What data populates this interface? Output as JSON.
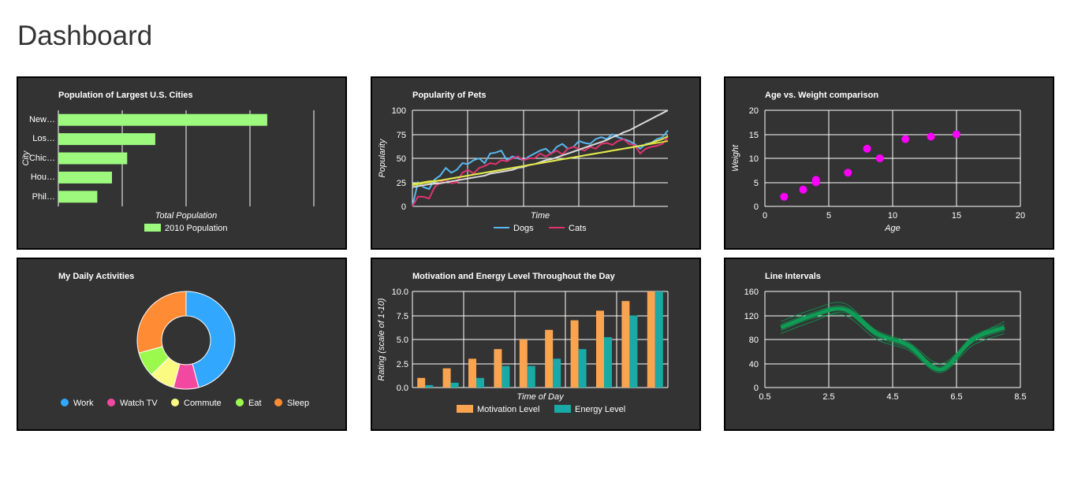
{
  "page": {
    "title": "Dashboard"
  },
  "charts": [
    {
      "type": "bar",
      "title": "Population of Largest U.S. Cities",
      "categories": [
        "New…",
        "Los…",
        "Chic…",
        "Hou…",
        "Phil…"
      ],
      "series": [
        {
          "name": "2010 Population",
          "values": [
            8175000,
            3792000,
            2695000,
            2099000,
            1526000
          ],
          "color": "#9cf97e"
        }
      ],
      "xlabel": "Total Population",
      "ylabel": "City",
      "xlim": [
        0,
        10000000
      ],
      "grid": true,
      "legend": "bottom"
    },
    {
      "type": "line",
      "title": "Popularity of Pets",
      "xlabel": "Time",
      "ylabel": "Popularity",
      "ylim": [
        0,
        100
      ],
      "yticks": [
        "0",
        "25",
        "50",
        "75",
        "100"
      ],
      "x": [
        0,
        1,
        2,
        3,
        4,
        5,
        6,
        7,
        8,
        9,
        10,
        11,
        12,
        13,
        14,
        15,
        16,
        17,
        18,
        19,
        20,
        21,
        22,
        23,
        24,
        25,
        26,
        27,
        28,
        29,
        30,
        31,
        32,
        33,
        34,
        35,
        36,
        37,
        38,
        39,
        40,
        41,
        42,
        43,
        44,
        45,
        46
      ],
      "series": [
        {
          "name": "Dogs",
          "color": "#57b8f0",
          "values": [
            0,
            25,
            20,
            18,
            28,
            32,
            40,
            35,
            38,
            45,
            44,
            48,
            50,
            45,
            55,
            56,
            58,
            48,
            52,
            50,
            48,
            52,
            55,
            58,
            60,
            55,
            62,
            65,
            60,
            62,
            68,
            66,
            65,
            70,
            72,
            70,
            75,
            72,
            70,
            68,
            65,
            60,
            65,
            66,
            70,
            72,
            79
          ]
        },
        {
          "name": "Cats",
          "color": "#e2336f",
          "values": [
            0,
            10,
            10,
            8,
            20,
            25,
            28,
            24,
            25,
            35,
            38,
            34,
            40,
            42,
            45,
            44,
            48,
            47,
            50,
            52,
            48,
            50,
            50,
            55,
            52,
            55,
            58,
            54,
            60,
            62,
            60,
            58,
            62,
            60,
            65,
            66,
            64,
            68,
            70,
            65,
            64,
            55,
            60,
            62,
            63,
            65,
            72
          ]
        }
      ],
      "trend_lines": [
        {
          "color": "#d9d9d9",
          "values": [
            20,
            21,
            22,
            23,
            23.5,
            24,
            25,
            26,
            27,
            28,
            29,
            30,
            31,
            32,
            34,
            35,
            36,
            37,
            38,
            40,
            41,
            43,
            44,
            46,
            48,
            49,
            51,
            53,
            55,
            57,
            59,
            61,
            63,
            65,
            67,
            69,
            72,
            74,
            77,
            79,
            82,
            85,
            88,
            91,
            94,
            97,
            100
          ]
        },
        {
          "color": "#d6d83c",
          "values": [
            22,
            23,
            24,
            25,
            26,
            27,
            28,
            29,
            30,
            31,
            32,
            33,
            34,
            35,
            36,
            37,
            38,
            39,
            40,
            41,
            42,
            43,
            44,
            45,
            46,
            47,
            48,
            49,
            50,
            51,
            52,
            53,
            54,
            55,
            56,
            57,
            58,
            59,
            60,
            61,
            62,
            63,
            64,
            65,
            66,
            67,
            68
          ]
        },
        {
          "color": "#e2e94d",
          "values": [
            23,
            24,
            25,
            26,
            26.5,
            27,
            28,
            29,
            30,
            31,
            32,
            33,
            34,
            35,
            36,
            37,
            38,
            39,
            40,
            41,
            42,
            43,
            44,
            45,
            46,
            47,
            48,
            49,
            50,
            51,
            52,
            53,
            54,
            55,
            56,
            57,
            58,
            59,
            60,
            61,
            62,
            63,
            64,
            66,
            68,
            70,
            73
          ]
        }
      ],
      "legend": "bottom"
    },
    {
      "type": "scatter",
      "title": "Age vs. Weight comparison",
      "xlabel": "Age",
      "ylabel": "Weight",
      "xlim": [
        0,
        20
      ],
      "ylim": [
        0,
        20
      ],
      "xticks": [
        "0",
        "5",
        "10",
        "15",
        "20"
      ],
      "yticks": [
        "0",
        "5",
        "10",
        "15",
        "20"
      ],
      "color": "#ff00ff",
      "points": [
        [
          1.5,
          2
        ],
        [
          3,
          3.5
        ],
        [
          4,
          5
        ],
        [
          4,
          5.5
        ],
        [
          6.5,
          7
        ],
        [
          8,
          12
        ],
        [
          9,
          10
        ],
        [
          11,
          14
        ],
        [
          13,
          14.5
        ],
        [
          15,
          15
        ]
      ],
      "grid": true
    },
    {
      "type": "pie",
      "title": "My Daily Activities",
      "labels": [
        "Work",
        "Watch TV",
        "Commute",
        "Eat",
        "Sleep"
      ],
      "values": [
        11,
        2,
        2,
        2,
        7
      ],
      "colors": [
        "#31a7fe",
        "#f3489f",
        "#fbfa81",
        "#9bf94e",
        "#ff8c35"
      ],
      "donut": true,
      "legend": "bottom"
    },
    {
      "type": "bar",
      "title": "Motivation and Energy Level Throughout the Day",
      "xlabel": "Time of Day",
      "ylabel": "Rating (scale of 1-10)",
      "ylim": [
        0,
        10
      ],
      "yticks": [
        "0.0",
        "2.5",
        "5.0",
        "7.5",
        "10.0"
      ],
      "categories": [
        "",
        "",
        "",
        "",
        "",
        "",
        "",
        "",
        "",
        ""
      ],
      "series": [
        {
          "name": "Motivation Level",
          "color": "#fba450",
          "values": [
            1,
            2,
            3,
            4,
            5,
            6,
            7,
            8,
            9,
            10
          ]
        },
        {
          "name": "Energy Level",
          "color": "#19aaa6",
          "values": [
            0.25,
            0.5,
            1,
            2.25,
            2.25,
            3,
            4,
            5.25,
            7.5,
            10
          ]
        }
      ],
      "grid": true,
      "legend": "bottom"
    },
    {
      "type": "line",
      "title": "Line Intervals",
      "xlim": [
        0.5,
        8.5
      ],
      "ylim": [
        0,
        160
      ],
      "xticks": [
        "0.5",
        "2.5",
        "4.5",
        "6.5",
        "8.5"
      ],
      "yticks": [
        "0",
        "40",
        "80",
        "120",
        "160"
      ],
      "x": [
        1,
        2,
        3,
        4,
        5,
        6,
        7,
        8
      ],
      "series": [
        {
          "color": "#0e9d55",
          "values": [
            100,
            120,
            130,
            90,
            70,
            30,
            80,
            100
          ]
        }
      ],
      "intervals": [
        {
          "color": "#0e9d55",
          "values": [
            90,
            110,
            125,
            85,
            65,
            28,
            75,
            95
          ]
        },
        {
          "color": "#0e9d55",
          "values": [
            110,
            130,
            140,
            92,
            72,
            35,
            85,
            105
          ]
        },
        {
          "color": "#0e9d55",
          "values": [
            95,
            115,
            120,
            80,
            62,
            25,
            70,
            90
          ]
        },
        {
          "color": "#0e9d55",
          "values": [
            105,
            125,
            135,
            95,
            75,
            40,
            82,
            110
          ]
        }
      ],
      "grid": true
    }
  ]
}
